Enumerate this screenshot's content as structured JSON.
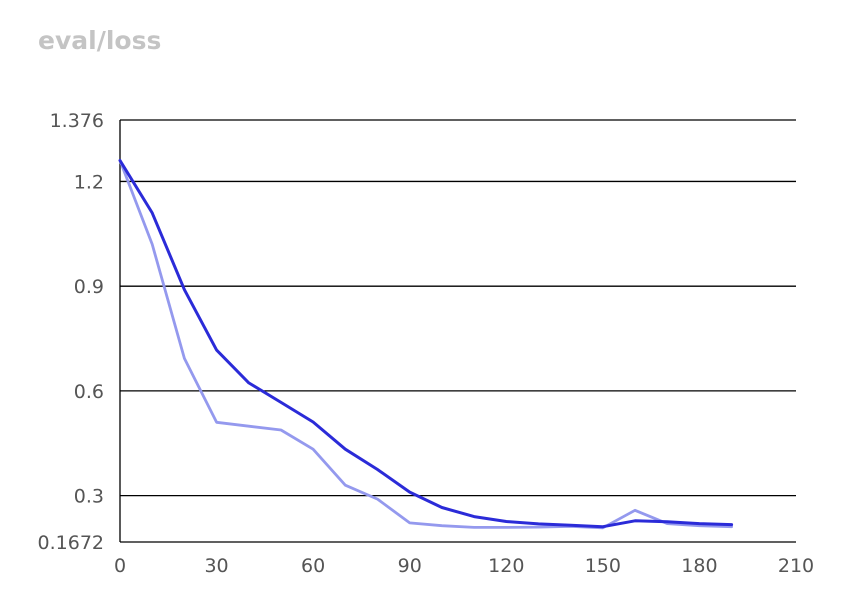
{
  "chart_data": {
    "type": "line",
    "title": "eval/loss",
    "xlabel": "",
    "ylabel": "",
    "xlim": [
      0,
      210
    ],
    "ylim": [
      0.1672,
      1.376
    ],
    "x_ticks": [
      "0",
      "30",
      "60",
      "90",
      "120",
      "150",
      "180",
      "210"
    ],
    "y_ticks": [
      "0.1672",
      "0.3",
      "0.6",
      "0.9",
      "1.2",
      "1.376"
    ],
    "grid": "horizontal",
    "series": [
      {
        "color": "#2b2bd8",
        "x": [
          0,
          10,
          20,
          30,
          40,
          50,
          60,
          70,
          80,
          90,
          100,
          110,
          120,
          130,
          140,
          150,
          160,
          170,
          180,
          190
        ],
        "values": [
          1.26,
          1.11,
          0.89,
          0.717,
          0.623,
          0.567,
          0.511,
          0.433,
          0.375,
          0.31,
          0.266,
          0.24,
          0.226,
          0.219,
          0.215,
          0.211,
          0.228,
          0.225,
          0.22,
          0.217
        ]
      },
      {
        "color": "#9499ee",
        "x": [
          0,
          10,
          20,
          30,
          40,
          50,
          60,
          70,
          80,
          90,
          100,
          110,
          120,
          130,
          140,
          150,
          160,
          170,
          180,
          190
        ],
        "values": [
          1.26,
          1.02,
          0.693,
          0.51,
          0.499,
          0.488,
          0.433,
          0.33,
          0.29,
          0.222,
          0.214,
          0.209,
          0.209,
          0.21,
          0.212,
          0.208,
          0.258,
          0.22,
          0.214,
          0.211
        ]
      }
    ]
  }
}
